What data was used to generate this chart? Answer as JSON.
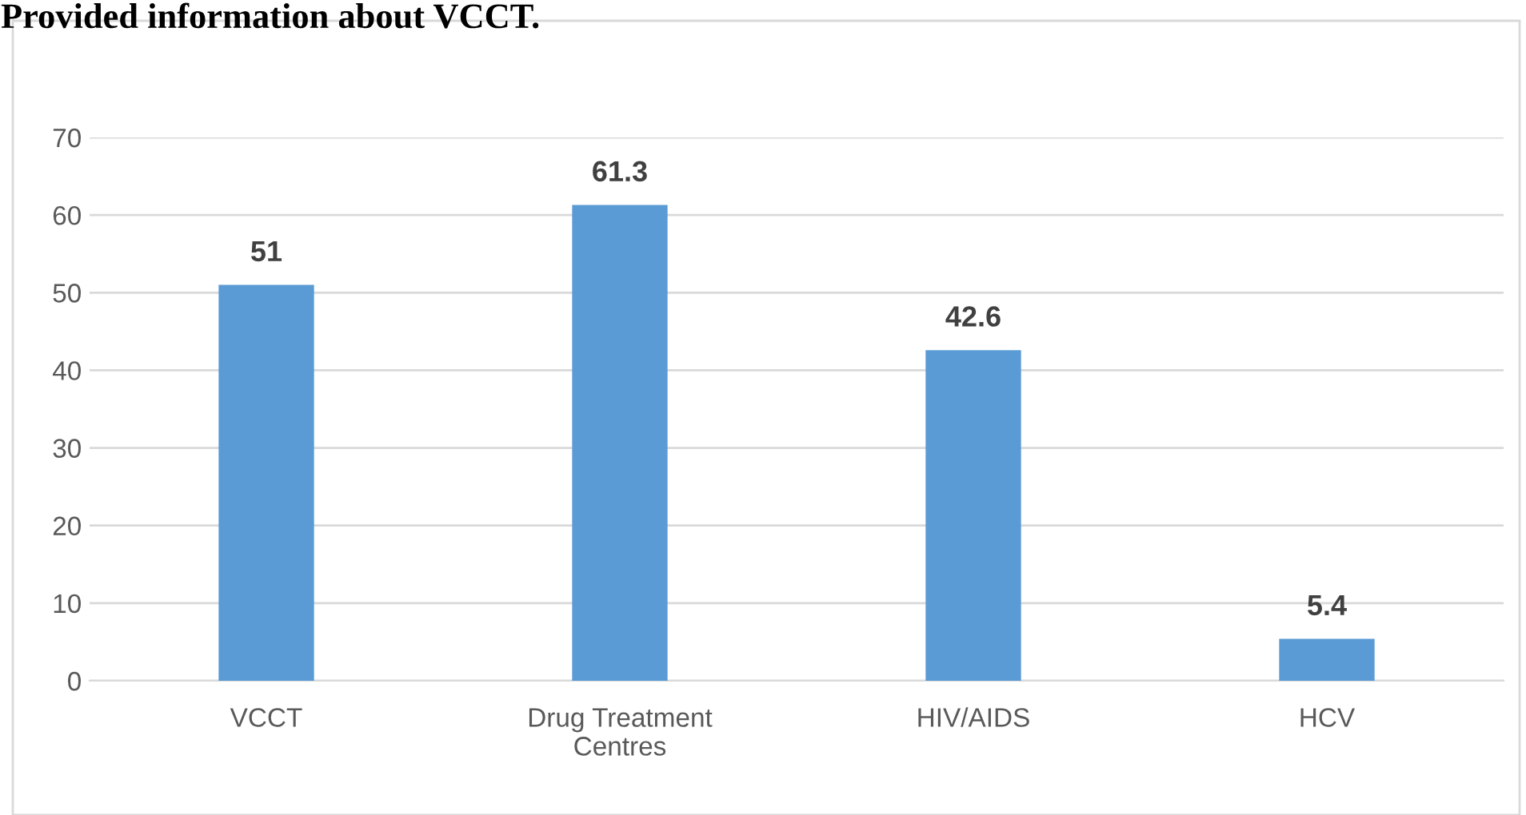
{
  "chart_data": {
    "type": "bar",
    "title": "Provided information about VCCT.",
    "categories": [
      "VCCT",
      "Drug Treatment Centres",
      "HIV/AIDS",
      "HCV"
    ],
    "values": [
      51,
      61.3,
      42.6,
      5.4
    ],
    "color": "#5b9bd5",
    "ylim": [
      0,
      70
    ],
    "yticks": [
      0,
      10,
      20,
      30,
      40,
      50,
      60,
      70
    ],
    "grid": "y",
    "data_labels": true
  }
}
